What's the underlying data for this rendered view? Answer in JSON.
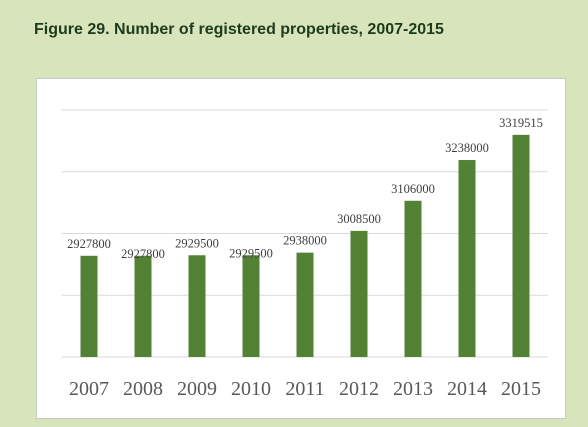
{
  "chart_data": {
    "type": "bar",
    "title": "Figure 29. Number of registered properties, 2007-2015",
    "categories": [
      "2007",
      "2008",
      "2009",
      "2010",
      "2011",
      "2012",
      "2013",
      "2014",
      "2015"
    ],
    "values": [
      2927800,
      2927800,
      2929500,
      2929500,
      2938000,
      3008500,
      3106000,
      3238000,
      3319515
    ],
    "color": "#548235",
    "ylim": [
      2600000,
      3400000
    ],
    "yticks": [
      2600000,
      2800000,
      3000000,
      3200000,
      3400000
    ],
    "grid": true
  }
}
